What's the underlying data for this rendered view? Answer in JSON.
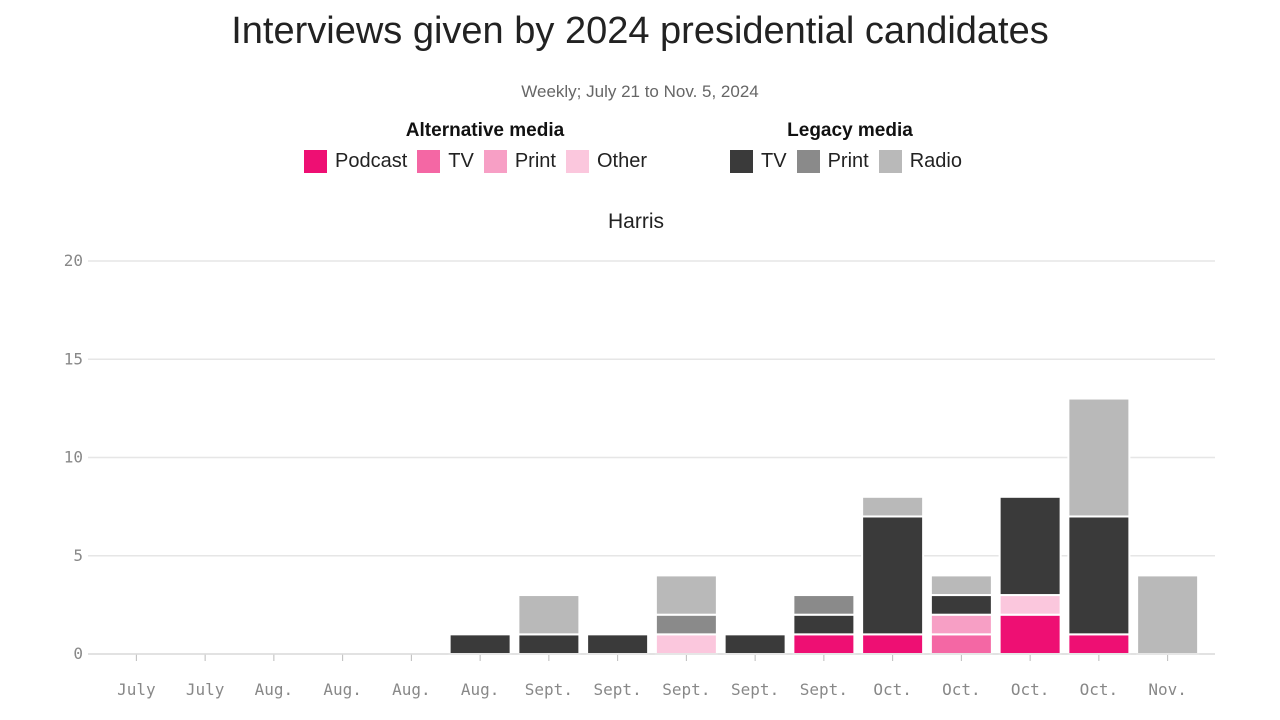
{
  "chart_data": {
    "type": "bar",
    "stacked": true,
    "title": "Interviews given by 2024 presidential candidates",
    "subtitle": "Weekly; July 21 to Nov. 5, 2024",
    "panel": "Harris",
    "legend_groups": [
      {
        "heading": "Alternative media",
        "items": [
          {
            "key": "alt_podcast",
            "label": "Podcast",
            "color": "#ee0f73"
          },
          {
            "key": "alt_tv",
            "label": "TV",
            "color": "#f467a4"
          },
          {
            "key": "alt_print",
            "label": "Print",
            "color": "#f79fc5"
          },
          {
            "key": "alt_other",
            "label": "Other",
            "color": "#fbc7dd"
          }
        ]
      },
      {
        "heading": "Legacy media",
        "items": [
          {
            "key": "leg_tv",
            "label": "TV",
            "color": "#3a3a3a"
          },
          {
            "key": "leg_print",
            "label": "Print",
            "color": "#8a8a8a"
          },
          {
            "key": "leg_radio",
            "label": "Radio",
            "color": "#b9b9b9"
          }
        ]
      }
    ],
    "categories": [
      "July",
      "July",
      "Aug.",
      "Aug.",
      "Aug.",
      "Aug.",
      "Sept.",
      "Sept.",
      "Sept.",
      "Sept.",
      "Sept.",
      "Oct.",
      "Oct.",
      "Oct.",
      "Oct.",
      "Nov."
    ],
    "series": [
      {
        "key": "alt_podcast",
        "name": "Podcast",
        "values": [
          0,
          0,
          0,
          0,
          0,
          0,
          0,
          0,
          0,
          0,
          1,
          1,
          0,
          2,
          1,
          0
        ]
      },
      {
        "key": "alt_tv",
        "name": "TV",
        "values": [
          0,
          0,
          0,
          0,
          0,
          0,
          0,
          0,
          0,
          0,
          0,
          0,
          1,
          0,
          0,
          0
        ]
      },
      {
        "key": "alt_print",
        "name": "Print",
        "values": [
          0,
          0,
          0,
          0,
          0,
          0,
          0,
          0,
          0,
          0,
          0,
          0,
          1,
          0,
          0,
          0
        ]
      },
      {
        "key": "alt_other",
        "name": "Other",
        "values": [
          0,
          0,
          0,
          0,
          0,
          0,
          0,
          0,
          1,
          0,
          0,
          0,
          0,
          1,
          0,
          0
        ]
      },
      {
        "key": "leg_tv",
        "name": "TV",
        "values": [
          0,
          0,
          0,
          0,
          0,
          1,
          1,
          1,
          0,
          1,
          1,
          6,
          1,
          5,
          6,
          0
        ]
      },
      {
        "key": "leg_print",
        "name": "Print",
        "values": [
          0,
          0,
          0,
          0,
          0,
          0,
          0,
          0,
          1,
          0,
          1,
          0,
          0,
          0,
          0,
          0
        ]
      },
      {
        "key": "leg_radio",
        "name": "Radio",
        "values": [
          0,
          0,
          0,
          0,
          0,
          0,
          2,
          0,
          2,
          0,
          0,
          1,
          1,
          0,
          6,
          4
        ]
      }
    ],
    "ylim": [
      0,
      20
    ],
    "yticks": [
      0,
      5,
      10,
      15,
      20
    ],
    "grid": true
  }
}
